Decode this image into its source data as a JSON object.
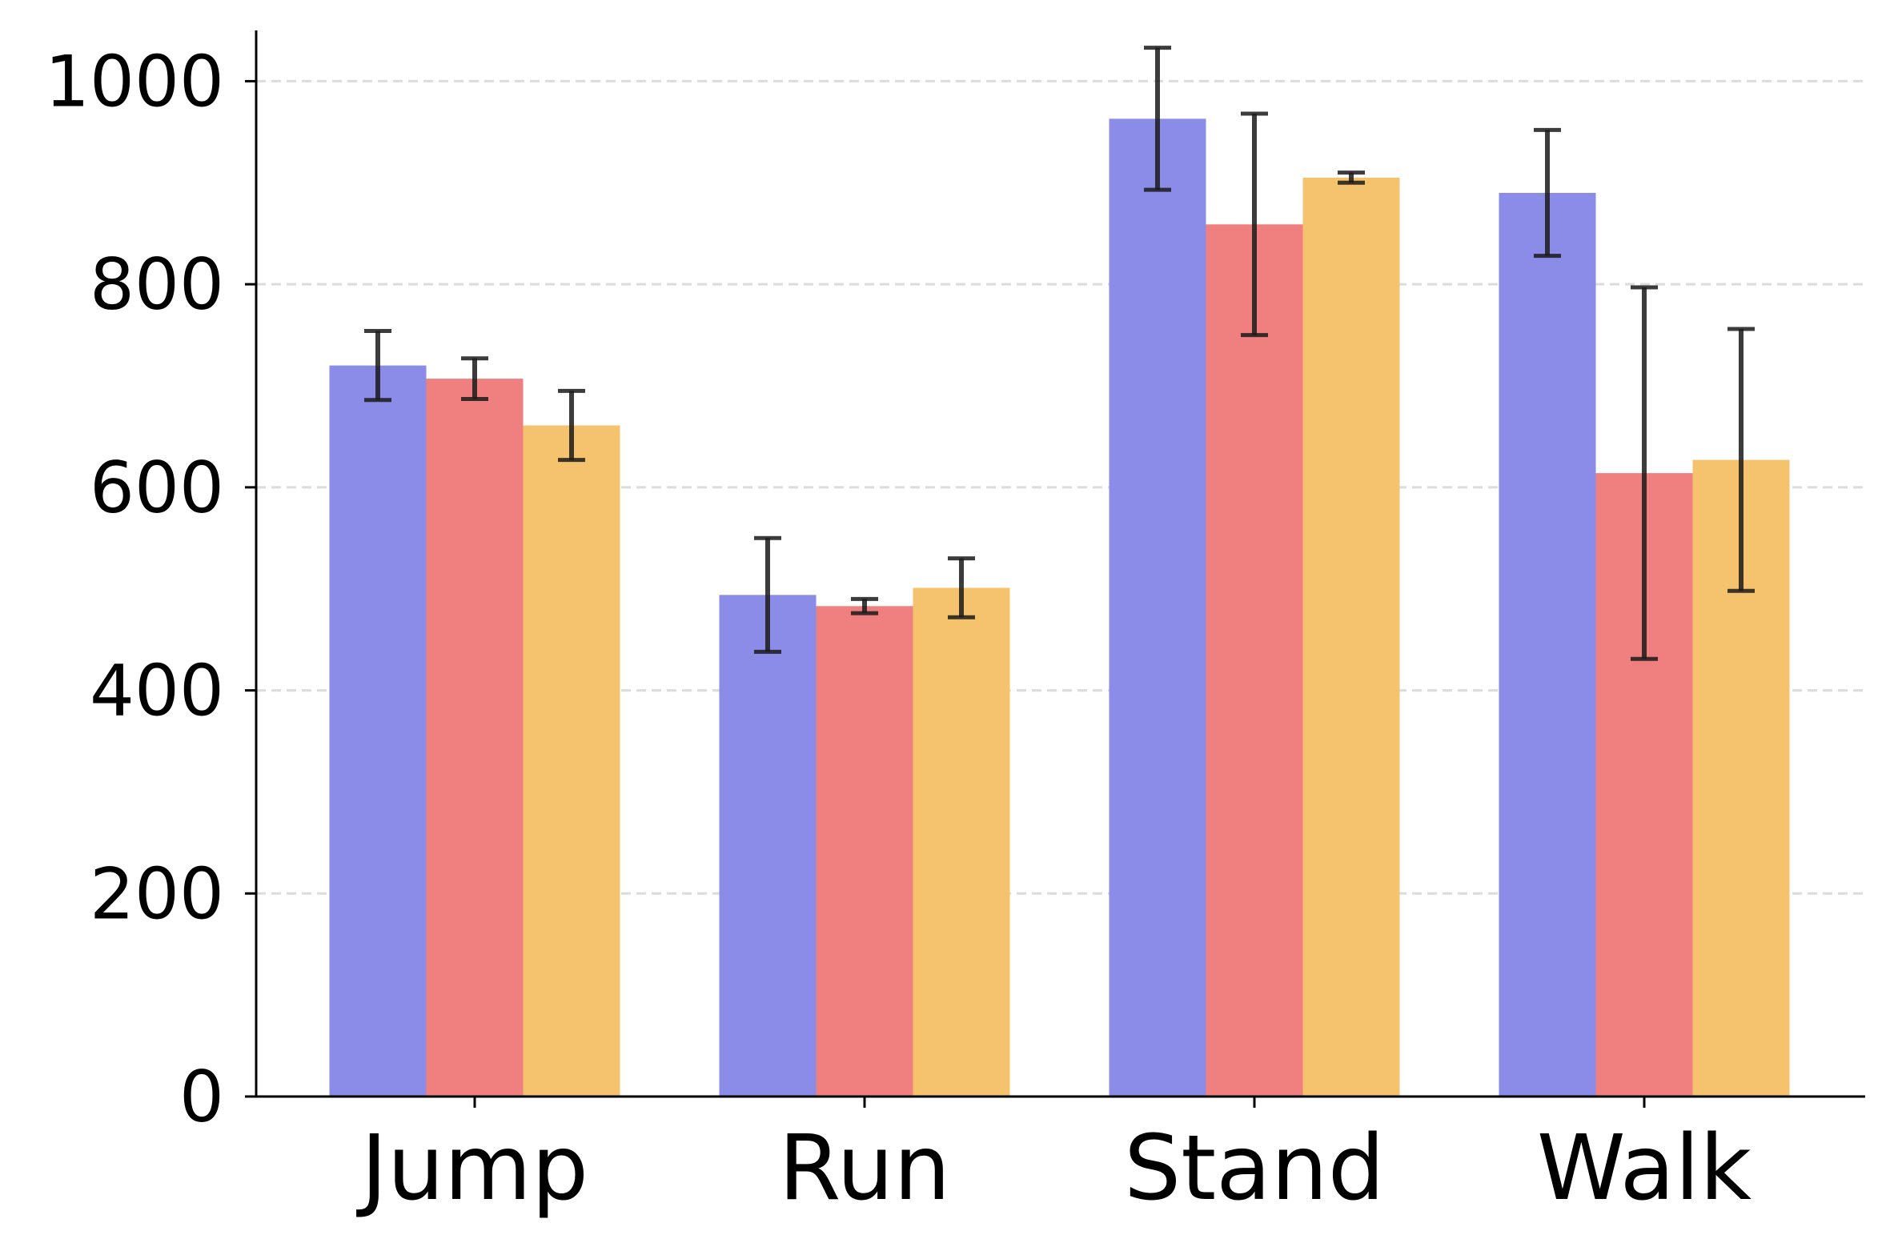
{
  "chart_data": {
    "type": "bar",
    "title": "",
    "xlabel": "",
    "ylabel": "",
    "categories": [
      "Jump",
      "Run",
      "Stand",
      "Walk"
    ],
    "ylim": [
      0,
      1050
    ],
    "yticks": [
      0,
      200,
      400,
      600,
      800,
      1000
    ],
    "grid": "y-dashed",
    "legend": "none",
    "series": [
      {
        "color": "#8B8BE8",
        "values": [
          720,
          494,
          963,
          890
        ],
        "errors": [
          34,
          56,
          70,
          62
        ]
      },
      {
        "color": "#F08080",
        "values": [
          707,
          483,
          859,
          614
        ],
        "errors": [
          20,
          7,
          109,
          183
        ]
      },
      {
        "color": "#F5C36E",
        "values": [
          661,
          501,
          905,
          627
        ],
        "errors": [
          34,
          29,
          5,
          129
        ]
      }
    ]
  }
}
